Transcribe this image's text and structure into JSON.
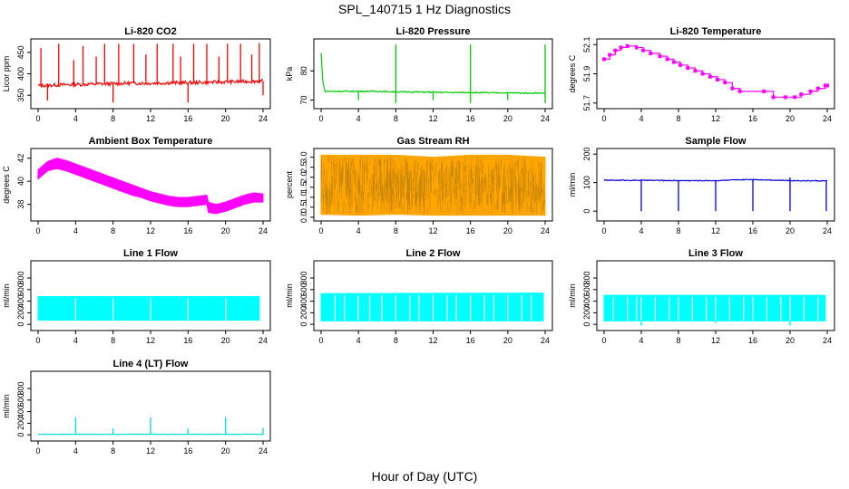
{
  "figure": {
    "title": "SPL_140715  1 Hz Diagnostics",
    "xlabel": "Hour of Day (UTC)"
  },
  "chart_data": [
    {
      "type": "line",
      "title": "Li-820 CO2",
      "ylabel": "Licor ppm",
      "color": "#ff0000",
      "xlim": [
        0,
        24
      ],
      "ylim": [
        325,
        475
      ],
      "xticks": [
        0,
        4,
        8,
        12,
        16,
        20,
        24
      ],
      "yticks": [
        350,
        400,
        450
      ],
      "series": [
        {
          "style": "noisy",
          "x": [
            0,
            2,
            4,
            6,
            8,
            10,
            12,
            14,
            16,
            18,
            20,
            22,
            24
          ],
          "y": [
            372,
            374,
            375,
            376,
            377,
            378,
            378,
            379,
            379,
            380,
            381,
            382,
            383
          ],
          "noise": 4,
          "spikes": [
            {
              "x": 0.3,
              "y": 460
            },
            {
              "x": 1.0,
              "y": 338
            },
            {
              "x": 2.2,
              "y": 470
            },
            {
              "x": 3.8,
              "y": 432
            },
            {
              "x": 4.8,
              "y": 465
            },
            {
              "x": 6.2,
              "y": 440
            },
            {
              "x": 7.1,
              "y": 470
            },
            {
              "x": 8.0,
              "y": 333
            },
            {
              "x": 8.6,
              "y": 470
            },
            {
              "x": 10.2,
              "y": 470
            },
            {
              "x": 11.5,
              "y": 445
            },
            {
              "x": 12.7,
              "y": 470
            },
            {
              "x": 14.4,
              "y": 470
            },
            {
              "x": 15.2,
              "y": 440
            },
            {
              "x": 16.0,
              "y": 333
            },
            {
              "x": 16.6,
              "y": 470
            },
            {
              "x": 18.0,
              "y": 470
            },
            {
              "x": 19.3,
              "y": 440
            },
            {
              "x": 20.2,
              "y": 470
            },
            {
              "x": 21.6,
              "y": 470
            },
            {
              "x": 22.8,
              "y": 445
            },
            {
              "x": 23.6,
              "y": 472
            },
            {
              "x": 24.0,
              "y": 350
            }
          ]
        }
      ]
    },
    {
      "type": "line",
      "title": "Li-820 Pressure",
      "ylabel": "kPa",
      "color": "#00cc00",
      "xlim": [
        0,
        24
      ],
      "ylim": [
        68,
        90
      ],
      "xticks": [
        0,
        4,
        8,
        12,
        16,
        20,
        24
      ],
      "yticks": [
        70,
        80
      ],
      "series": [
        {
          "style": "noisy",
          "x": [
            0,
            0.2,
            0.4,
            2,
            4,
            6,
            8,
            10,
            12,
            14,
            16,
            18,
            20,
            22,
            24
          ],
          "y": [
            86,
            76,
            73,
            73,
            73,
            73,
            72.8,
            72.8,
            72.7,
            72.6,
            72.6,
            72.5,
            72.5,
            72.4,
            72.4
          ],
          "noise": 0.2,
          "spikes": [
            {
              "x": 4.0,
              "y": 70
            },
            {
              "x": 8.0,
              "y": 89
            },
            {
              "x": 8.0,
              "y": 69
            },
            {
              "x": 12.0,
              "y": 70
            },
            {
              "x": 16.0,
              "y": 89
            },
            {
              "x": 16.0,
              "y": 69
            },
            {
              "x": 20.0,
              "y": 70
            },
            {
              "x": 24.0,
              "y": 89
            },
            {
              "x": 24.0,
              "y": 69
            }
          ]
        }
      ]
    },
    {
      "type": "line",
      "title": "Li-820 Temperature",
      "ylabel": "degrees C",
      "color": "#ff00ff",
      "xlim": [
        0,
        24
      ],
      "ylim": [
        51.68,
        52.12
      ],
      "xticks": [
        0,
        4,
        8,
        12,
        16,
        20,
        24
      ],
      "yticks": [
        51.7,
        51.9,
        52.1
      ],
      "series": [
        {
          "style": "step",
          "x": [
            0,
            0.6,
            1.2,
            1.8,
            2.5,
            3.5,
            4.2,
            5.0,
            6.0,
            6.8,
            7.5,
            8.2,
            9.0,
            9.8,
            10.6,
            11.4,
            12.2,
            13.0,
            13.8,
            14.6,
            17.2,
            18.2,
            19.5,
            20.5,
            21.2,
            22.2,
            23.0,
            23.8,
            24.0
          ],
          "y": [
            52.0,
            52.03,
            52.06,
            52.08,
            52.09,
            52.08,
            52.06,
            52.04,
            52.02,
            52.0,
            51.98,
            51.96,
            51.94,
            51.92,
            51.9,
            51.88,
            51.86,
            51.84,
            51.8,
            51.78,
            51.78,
            51.74,
            51.74,
            51.74,
            51.76,
            51.78,
            51.8,
            51.82,
            51.82
          ]
        }
      ]
    },
    {
      "type": "area",
      "title": "Ambient Box Temperature",
      "ylabel": "degrees C",
      "color": "#ff00ff",
      "xlim": [
        0,
        24
      ],
      "ylim": [
        36.8,
        42.6
      ],
      "xticks": [
        0,
        4,
        8,
        12,
        16,
        20,
        24
      ],
      "yticks": [
        38,
        40,
        42
      ],
      "series": [
        {
          "style": "band",
          "x": [
            0,
            1,
            2,
            3,
            4,
            5,
            6,
            7,
            8,
            9,
            10,
            11,
            12,
            13,
            14,
            15,
            16,
            17,
            18,
            18.1,
            19,
            20,
            21,
            22,
            23,
            24
          ],
          "upper": [
            41.0,
            41.7,
            42.0,
            41.8,
            41.5,
            41.2,
            40.9,
            40.6,
            40.3,
            40.0,
            39.7,
            39.4,
            39.1,
            38.9,
            38.7,
            38.6,
            38.6,
            38.7,
            38.8,
            38.2,
            38.0,
            38.2,
            38.5,
            38.8,
            39.0,
            38.9
          ],
          "lower": [
            40.2,
            40.9,
            41.1,
            40.9,
            40.6,
            40.3,
            40.0,
            39.7,
            39.4,
            39.1,
            38.8,
            38.6,
            38.3,
            38.1,
            37.9,
            37.8,
            37.8,
            37.9,
            38.0,
            37.3,
            37.2,
            37.4,
            37.7,
            38.0,
            38.2,
            38.2
          ]
        }
      ]
    },
    {
      "type": "area",
      "title": "Gas Stream RH",
      "ylabel": "percent",
      "color": "#ffa500",
      "xlim": [
        0,
        24
      ],
      "ylim": [
        -0.05,
        3.3
      ],
      "xticks": [
        0,
        4,
        8,
        12,
        16,
        20,
        24
      ],
      "yticks": [
        0.0,
        0.5,
        1.0,
        1.5,
        2.0,
        2.5,
        3.0
      ],
      "series": [
        {
          "style": "band",
          "x": [
            0,
            4,
            8,
            12,
            16,
            20,
            24
          ],
          "upper": [
            3.1,
            3.1,
            3.1,
            3.0,
            3.1,
            3.1,
            3.0
          ],
          "lower": [
            0.15,
            0.1,
            0.15,
            0.1,
            0.1,
            0.1,
            0.1
          ]
        }
      ]
    },
    {
      "type": "line",
      "title": "Sample Flow",
      "ylabel": "ml/min",
      "color": "#0000dd",
      "xlim": [
        0,
        24
      ],
      "ylim": [
        -25,
        210
      ],
      "xticks": [
        0,
        4,
        8,
        12,
        16,
        20,
        24
      ],
      "yticks": [
        0,
        100,
        200
      ],
      "series": [
        {
          "style": "noisy",
          "x": [
            0,
            4,
            8,
            12,
            16,
            20,
            24
          ],
          "y": [
            108,
            108,
            107,
            107,
            111,
            107,
            106
          ],
          "noise": 1.5,
          "spikes": [
            {
              "x": 4.0,
              "y": 0
            },
            {
              "x": 8.0,
              "y": 0
            },
            {
              "x": 12.0,
              "y": 0
            },
            {
              "x": 16.0,
              "y": 0
            },
            {
              "x": 20.0,
              "y": 0
            },
            {
              "x": 23.9,
              "y": 0
            },
            {
              "x": 20.0,
              "y": 118
            }
          ]
        }
      ]
    },
    {
      "type": "area",
      "title": "Line 1 Flow",
      "ylabel": "ml/min",
      "color": "#00ffff",
      "xlim": [
        0,
        24
      ],
      "ylim": [
        -60,
        1050
      ],
      "xticks": [
        0,
        4,
        8,
        12,
        16,
        20,
        24
      ],
      "yticks": [
        0,
        200,
        400,
        600,
        800
      ],
      "series": [
        {
          "style": "band",
          "x": [
            0,
            23.6
          ],
          "upper": [
            480,
            480
          ],
          "lower": [
            70,
            70
          ],
          "gaps": [
            4.0,
            8.0,
            12.0,
            16.0,
            20.0,
            23.8
          ]
        }
      ]
    },
    {
      "type": "area",
      "title": "Line 2 Flow",
      "ylabel": "ml/min",
      "color": "#00ffff",
      "xlim": [
        0,
        24
      ],
      "ylim": [
        -60,
        1050
      ],
      "xticks": [
        0,
        4,
        8,
        12,
        16,
        20,
        24
      ],
      "yticks": [
        0,
        200,
        400,
        600,
        800
      ],
      "series": [
        {
          "style": "band",
          "x": [
            0,
            23.8
          ],
          "upper": [
            530,
            540
          ],
          "lower": [
            60,
            60
          ],
          "gaps": [
            1.5,
            2.5,
            4.0,
            5.2,
            6.5,
            8.0,
            9.5,
            10.5,
            12.0,
            13.5,
            14.5,
            16.0,
            17.5,
            18.5,
            20.0,
            21.5,
            22.5
          ]
        }
      ]
    },
    {
      "type": "area",
      "title": "Line 3 Flow",
      "ylabel": "ml/min",
      "color": "#00ffff",
      "xlim": [
        0,
        24
      ],
      "ylim": [
        -60,
        1050
      ],
      "xticks": [
        0,
        4,
        8,
        12,
        16,
        20,
        24
      ],
      "yticks": [
        0,
        200,
        400,
        600,
        800
      ],
      "series": [
        {
          "style": "band",
          "x": [
            0,
            23.8
          ],
          "upper": [
            500,
            500
          ],
          "lower": [
            60,
            60
          ],
          "gaps": [
            1.0,
            2.5,
            3.5,
            4.0,
            5.5,
            7.0,
            8.0,
            9.5,
            11.0,
            12.0,
            13.5,
            15.0,
            16.0,
            17.5,
            19.0,
            20.0,
            21.5,
            23.0
          ],
          "dips": [
            {
              "x": 4.0,
              "y": -20
            },
            {
              "x": 12.0,
              "y": 20
            },
            {
              "x": 20.0,
              "y": -20
            }
          ]
        }
      ]
    },
    {
      "type": "line",
      "title": "Line 4 (LT) Flow",
      "ylabel": "ml/min",
      "color": "#00dddd",
      "xlim": [
        0,
        24
      ],
      "ylim": [
        -60,
        1050
      ],
      "xticks": [
        0,
        4,
        8,
        12,
        16,
        20,
        24
      ],
      "yticks": [
        0,
        200,
        400,
        600,
        800
      ],
      "series": [
        {
          "style": "noisy",
          "x": [
            0,
            24
          ],
          "y": [
            10,
            10
          ],
          "noise": 4,
          "spikes": [
            {
              "x": 4.0,
              "y": 300
            },
            {
              "x": 8.0,
              "y": 110
            },
            {
              "x": 12.0,
              "y": 300
            },
            {
              "x": 16.0,
              "y": 110
            },
            {
              "x": 20.0,
              "y": 300
            },
            {
              "x": 24.0,
              "y": 120
            }
          ]
        }
      ]
    }
  ]
}
